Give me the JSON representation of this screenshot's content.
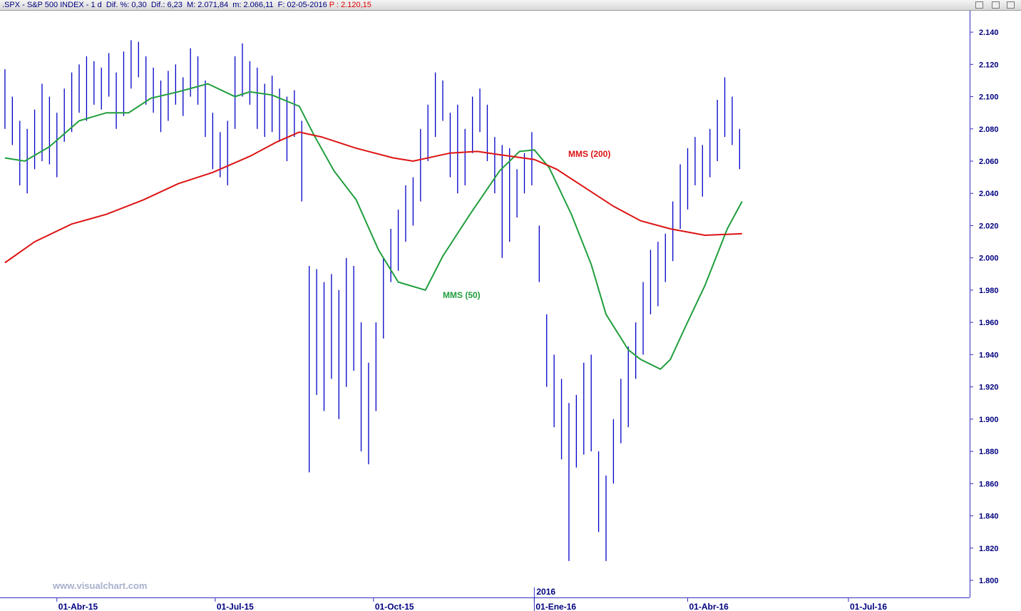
{
  "chart_data": {
    "type": "ohlc",
    "title": ".SPX - S&P 500 INDEX - 1 d  Dif. %: 0,30  Dif.: 6,23  M: 2.071,84  m: 2.066,11  F: 02-05-2016 ",
    "price_label": "P : 2.120,15",
    "watermark": "www.visualchart.com",
    "xlim": [
      -2,
      390
    ],
    "ylim": [
      1789.4,
      2153.3
    ],
    "xticks": [
      {
        "value": 21,
        "label": "01-Abr-15"
      },
      {
        "value": 85,
        "label": "01-Jul-15"
      },
      {
        "value": 149,
        "label": "01-Oct-15"
      },
      {
        "value": 214,
        "label": "01-Ene-16"
      },
      {
        "value": 276,
        "label": "01-Abr-16"
      },
      {
        "value": 341,
        "label": "01-Jul-16"
      }
    ],
    "year_marker": {
      "value": 214,
      "label": "2016"
    },
    "yticks": [
      {
        "value": 1800,
        "label": "1.800"
      },
      {
        "value": 1820,
        "label": "1.820"
      },
      {
        "value": 1840,
        "label": "1.840"
      },
      {
        "value": 1860,
        "label": "1.860"
      },
      {
        "value": 1880,
        "label": "1.880"
      },
      {
        "value": 1900,
        "label": "1.900"
      },
      {
        "value": 1920,
        "label": "1.920"
      },
      {
        "value": 1940,
        "label": "1.940"
      },
      {
        "value": 1960,
        "label": "1.960"
      },
      {
        "value": 1980,
        "label": "1.980"
      },
      {
        "value": 2000,
        "label": "2.000"
      },
      {
        "value": 2020,
        "label": "2.020"
      },
      {
        "value": 2040,
        "label": "2.040"
      },
      {
        "value": 2060,
        "label": "2.060"
      },
      {
        "value": 2080,
        "label": "2.080"
      },
      {
        "value": 2100,
        "label": "2.100"
      },
      {
        "value": 2120,
        "label": "2.120"
      },
      {
        "value": 2140,
        "label": "2.140"
      }
    ],
    "bars": {
      "color": "#0000c8",
      "x": [
        0,
        3,
        6,
        9,
        12,
        15,
        18,
        21,
        24,
        27,
        30,
        33,
        36,
        39,
        42,
        45,
        48,
        51,
        54,
        57,
        60,
        63,
        66,
        69,
        72,
        75,
        78,
        81,
        84,
        87,
        90,
        93,
        96,
        99,
        102,
        105,
        108,
        111,
        114,
        117,
        120,
        123,
        126,
        129,
        132,
        135,
        138,
        141,
        144,
        147,
        150,
        153,
        156,
        159,
        162,
        165,
        168,
        171,
        174,
        177,
        180,
        183,
        186,
        189,
        192,
        195,
        198,
        201,
        204,
        207,
        210,
        213,
        216,
        219,
        222,
        225,
        228,
        231,
        234,
        237,
        240,
        243,
        246,
        249,
        252,
        255,
        258,
        261,
        264,
        267,
        270,
        273,
        276,
        279,
        282,
        285,
        288,
        291,
        294,
        297
      ],
      "high": [
        2117,
        2100,
        2085,
        2080,
        2092,
        2108,
        2100,
        2090,
        2105,
        2115,
        2120,
        2125,
        2122,
        2118,
        2127,
        2115,
        2128,
        2135,
        2134,
        2125,
        2118,
        2110,
        2116,
        2120,
        2112,
        2130,
        2125,
        2110,
        2090,
        2078,
        2085,
        2125,
        2133,
        2122,
        2118,
        2108,
        2113,
        2105,
        2100,
        2104,
        2085,
        1995,
        1993,
        1985,
        1990,
        1980,
        2000,
        1995,
        1960,
        1935,
        1960,
        2000,
        2018,
        2030,
        2045,
        2050,
        2080,
        2095,
        2115,
        2110,
        2090,
        2095,
        2080,
        2100,
        2105,
        2095,
        2075,
        2070,
        2068,
        2055,
        2065,
        2078,
        2020,
        1965,
        1940,
        1925,
        1910,
        1915,
        1935,
        1940,
        1880,
        1865,
        1900,
        1925,
        1945,
        1960,
        1985,
        2005,
        2010,
        2015,
        2035,
        2058,
        2068,
        2075,
        2070,
        2080,
        2098,
        2112,
        2100,
        2080
      ],
      "low": [
        2080,
        2070,
        2045,
        2040,
        2055,
        2060,
        2058,
        2050,
        2072,
        2078,
        2090,
        2085,
        2095,
        2092,
        2100,
        2080,
        2088,
        2105,
        2112,
        2095,
        2090,
        2078,
        2085,
        2095,
        2088,
        2100,
        2095,
        2075,
        2055,
        2050,
        2045,
        2080,
        2100,
        2095,
        2080,
        2075,
        2078,
        2072,
        2060,
        2075,
        2035,
        1867,
        1915,
        1905,
        1925,
        1900,
        1920,
        1930,
        1880,
        1872,
        1905,
        1950,
        1985,
        1992,
        2010,
        2020,
        2035,
        2060,
        2075,
        2085,
        2050,
        2040,
        2045,
        2065,
        2078,
        2060,
        2040,
        2000,
        2010,
        2025,
        2040,
        2045,
        1985,
        1920,
        1895,
        1875,
        1812,
        1870,
        1878,
        1880,
        1830,
        1812,
        1860,
        1885,
        1895,
        1925,
        1940,
        1965,
        1970,
        1985,
        1998,
        2018,
        2030,
        2045,
        2038,
        2050,
        2060,
        2075,
        2070,
        2055
      ]
    },
    "series": [
      {
        "name": "MMS (50)",
        "color": "#1f9e3c",
        "x": [
          0,
          8,
          18,
          30,
          41,
          50,
          59,
          70,
          82,
          93,
          99,
          108,
          119,
          125,
          133,
          142,
          151,
          159,
          170,
          177,
          188,
          200,
          208,
          214,
          220,
          229,
          237,
          243,
          252,
          257,
          265,
          269,
          275,
          283,
          292,
          298
        ],
        "values": [
          2062,
          2060,
          2069,
          2085,
          2090,
          2090,
          2099,
          2103,
          2108,
          2100,
          2103,
          2101,
          2094,
          2076,
          2054,
          2036,
          2005,
          1985,
          1980,
          2001,
          2027,
          2054,
          2066,
          2067,
          2056,
          2027,
          1996,
          1965,
          1943,
          1937,
          1931,
          1937,
          1957,
          1983,
          2018,
          2035
        ]
      },
      {
        "name": "MMS (200)",
        "color": "#dc1414",
        "x": [
          0,
          12,
          27,
          41,
          56,
          70,
          84,
          99,
          110,
          119,
          128,
          142,
          157,
          165,
          180,
          191,
          200,
          214,
          223,
          234,
          246,
          257,
          269,
          283,
          298
        ],
        "values": [
          1997,
          2010,
          2021,
          2027,
          2036,
          2046,
          2053,
          2063,
          2072,
          2078,
          2075,
          2068,
          2062,
          2060,
          2065,
          2066,
          2064,
          2061,
          2055,
          2044,
          2032,
          2023,
          2018,
          2014,
          2015
        ]
      }
    ]
  }
}
